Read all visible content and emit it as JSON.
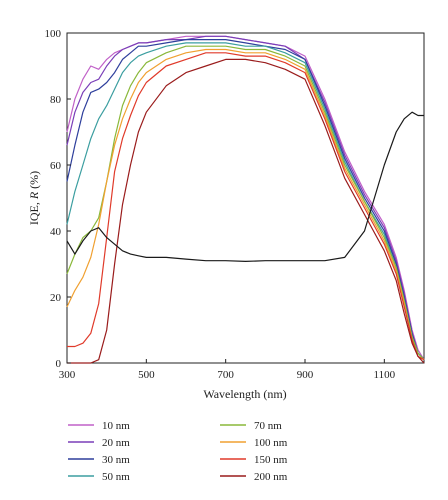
{
  "chart_data": {
    "type": "line",
    "xlabel": "Wavelength (nm)",
    "ylabel_prefix": "IQE, ",
    "ylabel_italic": "R",
    "ylabel_suffix": " (%)",
    "xlim": [
      300,
      1200
    ],
    "ylim": [
      0,
      100
    ],
    "xticks": [
      300,
      500,
      700,
      900,
      1100
    ],
    "yticks": [
      0,
      20,
      40,
      60,
      80,
      100
    ],
    "grid": false,
    "legend_position": "bottom",
    "x": [
      300,
      320,
      340,
      360,
      380,
      400,
      420,
      440,
      460,
      480,
      500,
      550,
      600,
      650,
      700,
      750,
      800,
      850,
      900,
      950,
      1000,
      1050,
      1100,
      1130,
      1150,
      1170,
      1185,
      1200
    ],
    "series": [
      {
        "name": "10 nm",
        "color": "#c060c8",
        "values": [
          70,
          80,
          86,
          90,
          89,
          92,
          94,
          95,
          96,
          97,
          97,
          98,
          99,
          99,
          99,
          98,
          97,
          96,
          93,
          80,
          64,
          52,
          42,
          32,
          22,
          10,
          4,
          1
        ]
      },
      {
        "name": "20 nm",
        "color": "#7a3fb8",
        "values": [
          66,
          76,
          82,
          85,
          86,
          90,
          93,
          95,
          96,
          97,
          97,
          98,
          98,
          99,
          99,
          98,
          97,
          96,
          92,
          79,
          63,
          51,
          41,
          31,
          21,
          9,
          3,
          1
        ]
      },
      {
        "name": "30 nm",
        "color": "#2e3f9c",
        "values": [
          55,
          66,
          76,
          82,
          83,
          85,
          88,
          92,
          94,
          96,
          96,
          97,
          98,
          98,
          98,
          97,
          96,
          95,
          92,
          78,
          62,
          50,
          40,
          30,
          20,
          9,
          3,
          1
        ]
      },
      {
        "name": "50 nm",
        "color": "#3b9ea0",
        "values": [
          42,
          52,
          60,
          68,
          74,
          78,
          83,
          88,
          91,
          93,
          94,
          96,
          97,
          97,
          97,
          96,
          96,
          94,
          91,
          77,
          61,
          49,
          39,
          29,
          19,
          8,
          3,
          1
        ]
      },
      {
        "name": "70 nm",
        "color": "#8ab83a",
        "values": [
          27,
          33,
          38,
          40,
          44,
          55,
          68,
          78,
          84,
          88,
          91,
          94,
          96,
          96,
          96,
          95,
          95,
          93,
          90,
          76,
          60,
          49,
          38,
          29,
          19,
          8,
          3,
          1
        ]
      },
      {
        "name": "100 nm",
        "color": "#f0a030",
        "values": [
          17,
          22,
          26,
          32,
          42,
          55,
          66,
          74,
          80,
          85,
          88,
          92,
          94,
          95,
          95,
          94,
          94,
          92,
          89,
          75,
          59,
          48,
          37,
          28,
          18,
          7,
          2,
          1
        ]
      },
      {
        "name": "150 nm",
        "color": "#e03a2a",
        "values": [
          5,
          5,
          6,
          9,
          18,
          38,
          58,
          68,
          75,
          81,
          85,
          90,
          92,
          94,
          94,
          93,
          93,
          91,
          88,
          74,
          58,
          47,
          36,
          27,
          17,
          7,
          2,
          1
        ]
      },
      {
        "name": "200 nm",
        "color": "#9a1c1c",
        "values": [
          0,
          0,
          0,
          0,
          1,
          10,
          30,
          48,
          60,
          70,
          76,
          84,
          88,
          90,
          92,
          92,
          91,
          89,
          86,
          72,
          56,
          45,
          34,
          25,
          15,
          6,
          2,
          0
        ]
      },
      {
        "name": "",
        "color": "#1a1a1a",
        "values": [
          37,
          33,
          37,
          40,
          41,
          38,
          36,
          34,
          33,
          32.5,
          32,
          32,
          31.5,
          31,
          31,
          30.8,
          31,
          31,
          31,
          31,
          32,
          40,
          60,
          70,
          74,
          76,
          75,
          75
        ]
      }
    ]
  }
}
